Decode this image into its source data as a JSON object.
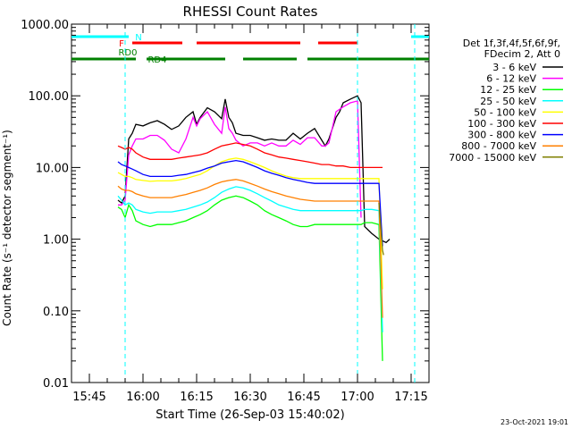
{
  "chart_data": {
    "type": "line",
    "title": "RHESSI Count Rates",
    "xlabel": "Start Time (26-Sep-03 15:40:02)",
    "ylabel": "Count Rate (s⁻¹ detector segment⁻¹)",
    "yscale": "log",
    "ylim": [
      0.01,
      1000
    ],
    "xlim_minutes": [
      0,
      100
    ],
    "x_tick_labels": [
      "15:45",
      "16:00",
      "16:15",
      "16:30",
      "16:45",
      "17:00",
      "17:15"
    ],
    "x_tick_minutes": [
      5,
      20,
      35,
      50,
      65,
      80,
      95
    ],
    "y_tick_labels": [
      "0.01",
      "0.10",
      "1.00",
      "10.00",
      "100.00",
      "1000.00"
    ],
    "y_tick_values": [
      0.01,
      0.1,
      1,
      10,
      100,
      1000
    ],
    "legend_header": [
      "Det 1f,3f,4f,5f,6f,9f,",
      "FDecim 2, Att 0"
    ],
    "legend_position": "right",
    "timestamp": "23-Oct-2021 19:01",
    "series": [
      {
        "name": "3 - 6 keV",
        "color": "#000000",
        "x": [
          13,
          14,
          15,
          16,
          17,
          18,
          20,
          22,
          24,
          26,
          28,
          30,
          32,
          34,
          35,
          36,
          38,
          40,
          42,
          43,
          44,
          45,
          46,
          48,
          50,
          52,
          54,
          56,
          58,
          60,
          62,
          64,
          66,
          68,
          70,
          71,
          72,
          74,
          75,
          76,
          78,
          80,
          81,
          82,
          84,
          86,
          88,
          89
        ],
        "y": [
          3.5,
          3.2,
          4.0,
          25,
          30,
          40,
          38,
          42,
          45,
          40,
          34,
          38,
          50,
          60,
          40,
          50,
          68,
          60,
          48,
          90,
          50,
          42,
          30,
          28,
          28,
          26,
          24,
          25,
          24,
          24,
          30,
          25,
          30,
          35,
          24,
          20,
          25,
          50,
          60,
          80,
          90,
          100,
          80,
          1.5,
          1.2,
          1.0,
          0.9,
          1.0
        ]
      },
      {
        "name": "6 - 12 keV",
        "color": "#ff00ff",
        "x": [
          13,
          14,
          15,
          16,
          17,
          18,
          20,
          22,
          24,
          26,
          28,
          30,
          32,
          34,
          35,
          36,
          38,
          40,
          42,
          43,
          44,
          45,
          46,
          48,
          50,
          52,
          54,
          56,
          58,
          60,
          62,
          64,
          66,
          68,
          70,
          71,
          72,
          74,
          76,
          78,
          80,
          81
        ],
        "y": [
          3.0,
          3.0,
          3.5,
          15,
          20,
          25,
          25,
          28,
          28,
          24,
          18,
          16,
          25,
          50,
          38,
          48,
          60,
          40,
          30,
          70,
          35,
          30,
          24,
          20,
          22,
          22,
          20,
          22,
          20,
          20,
          24,
          21,
          26,
          26,
          20,
          20,
          22,
          60,
          70,
          80,
          85,
          2.0
        ]
      },
      {
        "name": "12 - 25 keV",
        "color": "#00ff00",
        "x": [
          13,
          14,
          15,
          16,
          17,
          18,
          20,
          22,
          24,
          26,
          28,
          30,
          32,
          34,
          36,
          38,
          40,
          42,
          44,
          46,
          48,
          50,
          52,
          54,
          56,
          58,
          60,
          62,
          64,
          66,
          68,
          70,
          72,
          74,
          76,
          78,
          80,
          81,
          82,
          84,
          86,
          87
        ],
        "y": [
          2.8,
          2.6,
          2.0,
          3.0,
          2.5,
          1.8,
          1.6,
          1.5,
          1.6,
          1.6,
          1.6,
          1.7,
          1.8,
          2.0,
          2.2,
          2.5,
          3.0,
          3.5,
          3.8,
          4.0,
          3.8,
          3.4,
          3.0,
          2.5,
          2.2,
          2.0,
          1.8,
          1.6,
          1.5,
          1.5,
          1.6,
          1.6,
          1.6,
          1.6,
          1.6,
          1.6,
          1.6,
          1.6,
          1.7,
          1.7,
          1.6,
          0.02
        ]
      },
      {
        "name": "25 - 50 keV",
        "color": "#00ffff",
        "x": [
          13,
          14,
          15,
          16,
          17,
          18,
          20,
          22,
          24,
          26,
          28,
          30,
          32,
          34,
          36,
          38,
          40,
          42,
          44,
          46,
          48,
          50,
          52,
          54,
          56,
          58,
          60,
          62,
          64,
          66,
          68,
          70,
          72,
          74,
          76,
          78,
          80,
          81,
          82,
          84,
          86,
          87
        ],
        "y": [
          4.0,
          3.5,
          3.0,
          3.2,
          3.0,
          2.6,
          2.4,
          2.3,
          2.4,
          2.4,
          2.4,
          2.5,
          2.6,
          2.8,
          3.0,
          3.3,
          3.8,
          4.5,
          5.0,
          5.4,
          5.2,
          4.8,
          4.3,
          3.8,
          3.4,
          3.0,
          2.8,
          2.6,
          2.5,
          2.5,
          2.5,
          2.5,
          2.5,
          2.5,
          2.5,
          2.5,
          2.5,
          2.5,
          2.6,
          2.6,
          2.5,
          0.05
        ]
      },
      {
        "name": "50 - 100 keV",
        "color": "#ffff00",
        "x": [
          13,
          14,
          15,
          16,
          17,
          18,
          20,
          22,
          24,
          26,
          28,
          30,
          32,
          34,
          36,
          38,
          40,
          42,
          44,
          46,
          48,
          50,
          52,
          54,
          56,
          58,
          60,
          62,
          64,
          66,
          68,
          70,
          72,
          74,
          76,
          78,
          80,
          81,
          82,
          84,
          86,
          87
        ],
        "y": [
          8.5,
          8.0,
          7.5,
          7.5,
          7.2,
          6.8,
          6.6,
          6.4,
          6.5,
          6.5,
          6.5,
          6.7,
          7.0,
          7.5,
          8.0,
          9.0,
          10.5,
          12.0,
          13.0,
          13.5,
          13.0,
          12.0,
          11.0,
          10.0,
          9.0,
          8.2,
          7.6,
          7.2,
          7.0,
          7.0,
          7.0,
          7.0,
          7.0,
          7.0,
          7.0,
          7.0,
          7.0,
          7.0,
          7.0,
          7.0,
          7.0,
          0.2
        ]
      },
      {
        "name": "100 - 300 keV",
        "color": "#ff0000",
        "x": [
          13,
          14,
          15,
          16,
          17,
          18,
          20,
          22,
          24,
          26,
          28,
          30,
          32,
          34,
          36,
          38,
          40,
          42,
          44,
          46,
          48,
          50,
          52,
          54,
          56,
          58,
          60,
          62,
          64,
          66,
          68,
          70,
          72,
          74,
          76,
          78,
          80,
          81,
          82,
          84,
          86,
          87
        ],
        "y": [
          20,
          19,
          18,
          19,
          18,
          16,
          14,
          13,
          13,
          13,
          13,
          13.5,
          14,
          14.5,
          15,
          16,
          18,
          20,
          21,
          22,
          21,
          20,
          18,
          16,
          15,
          14,
          13.5,
          13,
          12.5,
          12,
          11.5,
          11,
          11,
          10.5,
          10.5,
          10,
          10,
          10,
          10,
          10,
          10,
          10
        ]
      },
      {
        "name": "300 - 800 keV",
        "color": "#0000ff",
        "x": [
          13,
          14,
          15,
          16,
          17,
          18,
          20,
          22,
          24,
          26,
          28,
          30,
          32,
          34,
          36,
          38,
          40,
          42,
          44,
          46,
          48,
          50,
          52,
          54,
          56,
          58,
          60,
          62,
          64,
          66,
          68,
          70,
          72,
          74,
          76,
          78,
          80,
          81,
          82,
          84,
          86,
          87
        ],
        "y": [
          12,
          11,
          10.5,
          10,
          9.5,
          9,
          8,
          7.5,
          7.5,
          7.5,
          7.5,
          7.8,
          8,
          8.5,
          9,
          9.8,
          10.5,
          11.5,
          12,
          12.5,
          12,
          11,
          10,
          9,
          8.3,
          7.8,
          7.2,
          6.8,
          6.5,
          6.2,
          6,
          6,
          6,
          6,
          6,
          6,
          6,
          6,
          6,
          6,
          6,
          0.8
        ]
      },
      {
        "name": "800 - 7000 keV",
        "color": "#ff8000",
        "x": [
          13,
          14,
          15,
          16,
          17,
          18,
          20,
          22,
          24,
          26,
          28,
          30,
          32,
          34,
          36,
          38,
          40,
          42,
          44,
          46,
          48,
          50,
          52,
          54,
          56,
          58,
          60,
          62,
          64,
          66,
          68,
          70,
          72,
          74,
          76,
          78,
          80,
          81,
          82,
          84,
          86,
          87
        ],
        "y": [
          5.5,
          5.0,
          4.8,
          4.8,
          4.6,
          4.3,
          4.0,
          3.8,
          3.8,
          3.8,
          3.8,
          4.0,
          4.2,
          4.5,
          4.8,
          5.2,
          5.8,
          6.3,
          6.6,
          6.8,
          6.5,
          6.0,
          5.5,
          5.0,
          4.6,
          4.3,
          4.0,
          3.8,
          3.6,
          3.5,
          3.4,
          3.4,
          3.4,
          3.4,
          3.4,
          3.4,
          3.4,
          3.4,
          3.4,
          3.4,
          3.4,
          0.08
        ]
      },
      {
        "name": "7000 - 15000 keV",
        "color": "#808000",
        "x": [
          86,
          87,
          87.3
        ],
        "y": [
          3.2,
          0.7,
          0.6
        ]
      }
    ],
    "attenuator_bars": [
      {
        "label": "N",
        "color": "#00ffff",
        "segments": [
          [
            0,
            16
          ],
          [
            95,
            100
          ]
        ]
      },
      {
        "label": "F",
        "color": "#ff0000",
        "segments": [
          [
            17,
            31
          ],
          [
            35,
            64
          ],
          [
            69,
            80
          ]
        ]
      },
      {
        "label": "RD0",
        "color": "#008000",
        "segments": [
          [
            0,
            18
          ],
          [
            21,
            43
          ],
          [
            48,
            63
          ],
          [
            66,
            96
          ],
          [
            96,
            100
          ]
        ]
      },
      {
        "label": "RD4",
        "color": "#008000",
        "segments": []
      }
    ],
    "vertical_markers_minutes": [
      15,
      80,
      96
    ],
    "vertical_markers_color": "#00ffff"
  }
}
